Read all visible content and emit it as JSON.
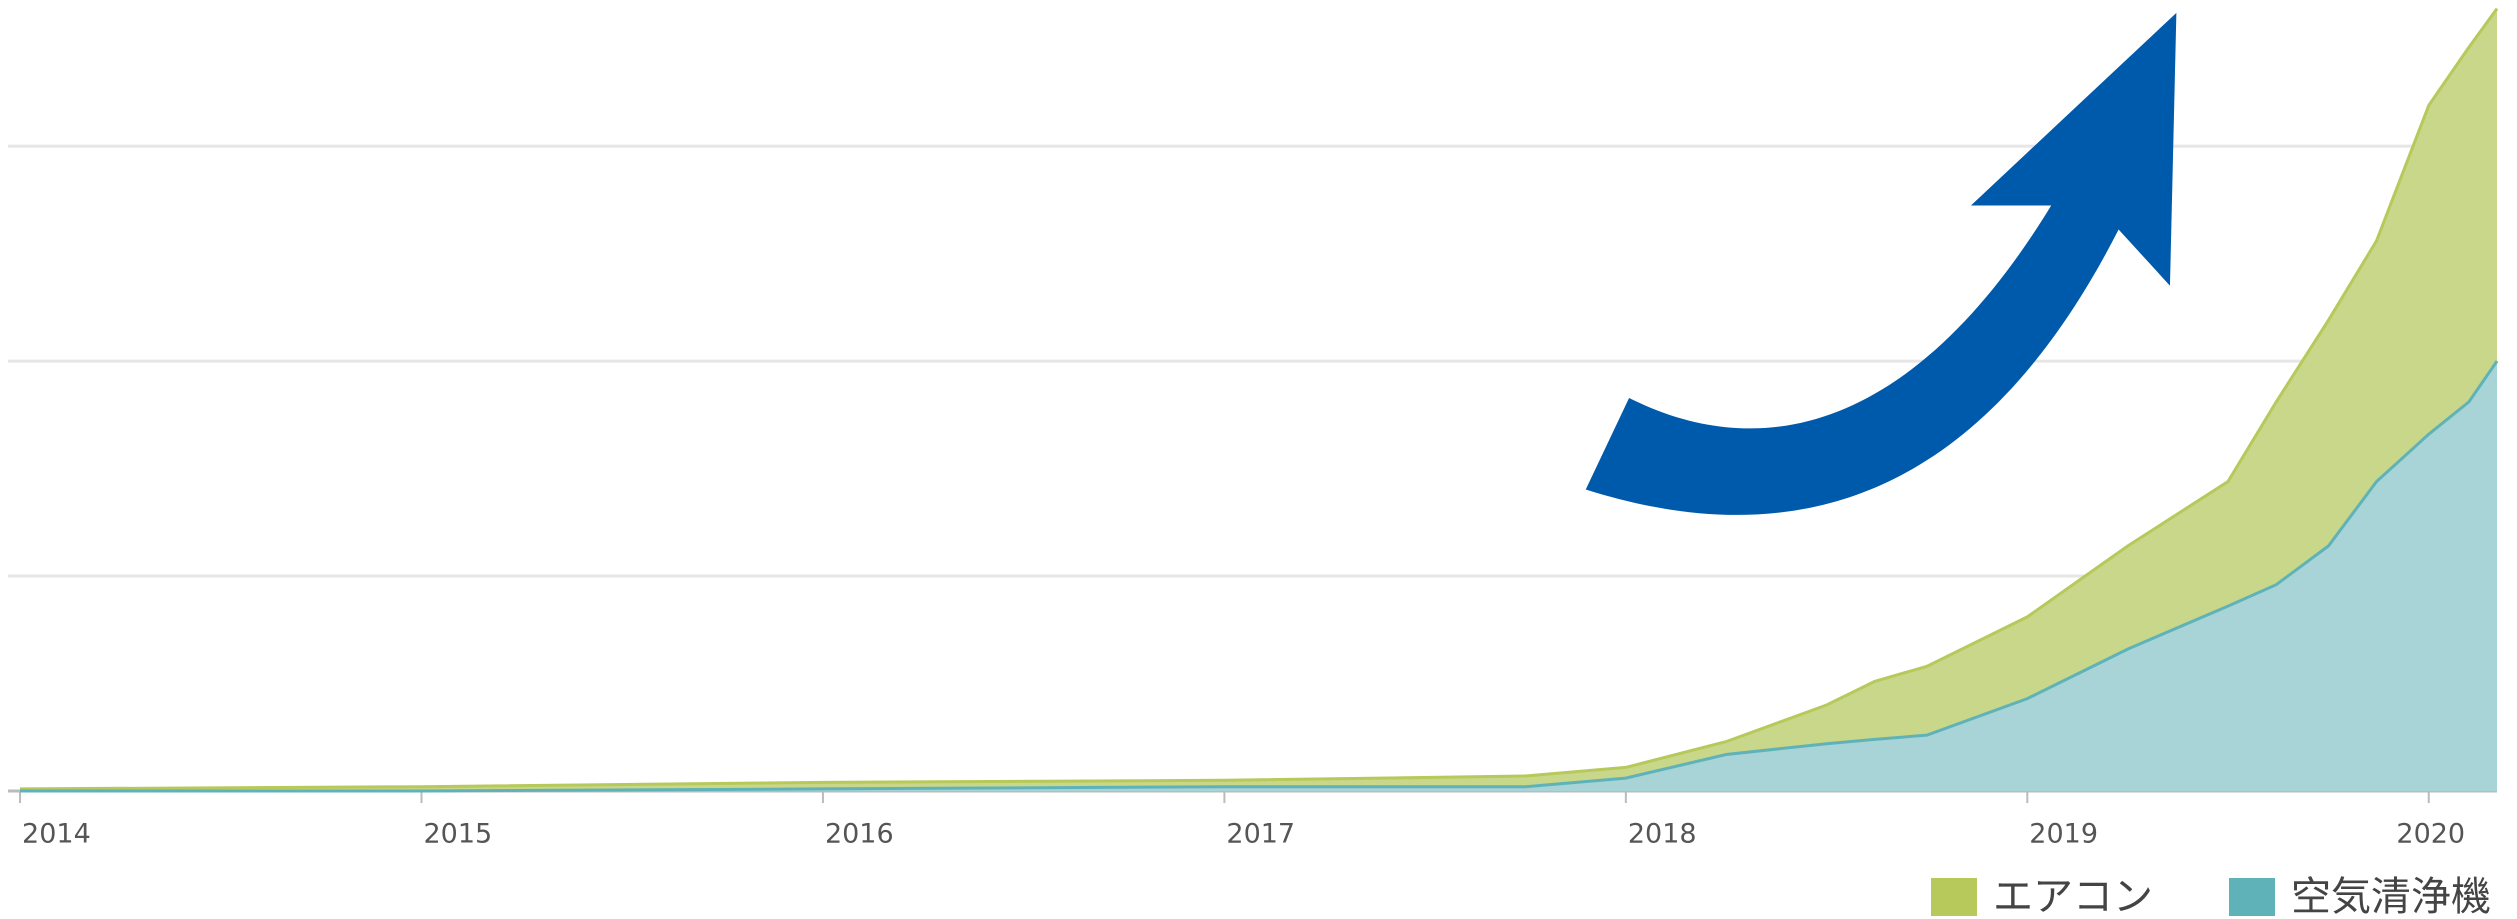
{
  "chart_data": {
    "type": "area",
    "stacked": false,
    "x": [
      2014,
      2015,
      2016,
      2017,
      2017.75,
      2018,
      2018.25,
      2018.5,
      2018.62,
      2018.75,
      2019,
      2019.25,
      2019.5,
      2019.62,
      2019.75,
      2019.87,
      2020,
      2020.1,
      2020.17
    ],
    "series": [
      {
        "name": "エアコン",
        "color": "#b6c95a",
        "fill": "#c9d78a",
        "values": [
          0.01,
          0.02,
          0.04,
          0.05,
          0.07,
          0.11,
          0.23,
          0.4,
          0.51,
          0.58,
          0.81,
          1.14,
          1.44,
          1.81,
          2.19,
          2.56,
          3.19,
          3.46,
          3.64
        ]
      },
      {
        "name": "空気清浄機",
        "color": "#5fb3b8",
        "fill": "#a8d4d7",
        "values": [
          0,
          0,
          0.01,
          0.02,
          0.02,
          0.06,
          0.17,
          0.22,
          0.24,
          0.26,
          0.43,
          0.66,
          0.86,
          0.96,
          1.14,
          1.44,
          1.66,
          1.81,
          2.0
        ]
      }
    ],
    "xlim": [
      2013.97,
      2020.17
    ],
    "xticks": [
      2014,
      2015,
      2016,
      2017,
      2018,
      2019,
      2020
    ],
    "ylim": [
      0,
      3.68
    ],
    "yticks": [
      0,
      1,
      2,
      3
    ],
    "grid": true
  }
}
